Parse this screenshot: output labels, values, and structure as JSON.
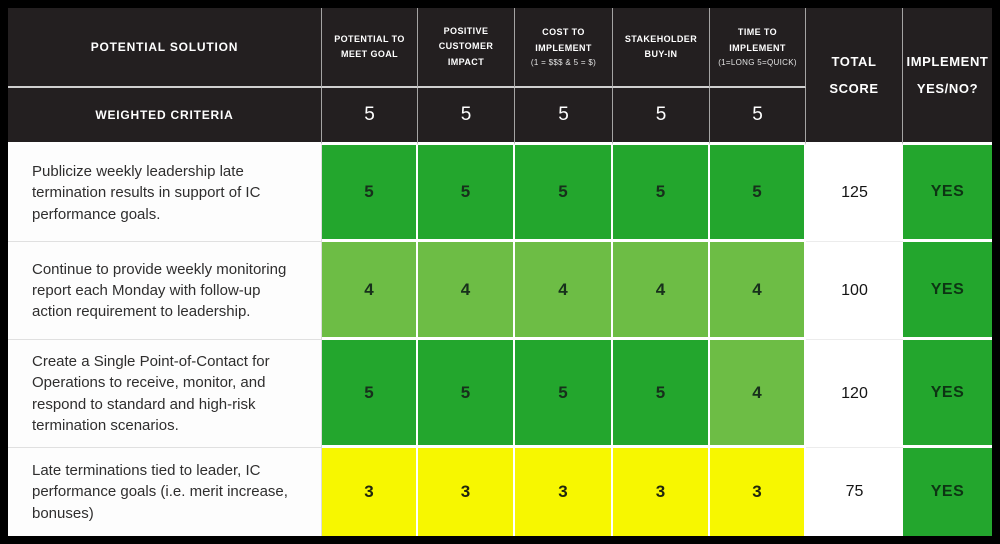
{
  "colors": {
    "frame": "#000000",
    "header_bg": "#231f20",
    "header_text": "#ffffff",
    "score_5_green": "#23a62d",
    "score_4_light_green": "#6dbd45",
    "score_3_yellow": "#f7f700",
    "decision_yes_bg": "#23a62d",
    "gridline_white": "#ffffff"
  },
  "table": {
    "header": {
      "solution_label": "POTENTIAL SOLUTION",
      "weighted_label": "WEIGHTED CRITERIA",
      "criteria": [
        {
          "name": "POTENTIAL TO MEET GOAL",
          "note": "",
          "weight": 5
        },
        {
          "name": "POSITIVE CUSTOMER IMPACT",
          "note": "",
          "weight": 5
        },
        {
          "name": "COST TO IMPLEMENT",
          "note": "(1 = $$$ & 5 = $)",
          "weight": 5
        },
        {
          "name": "STAKEHOLDER BUY-IN",
          "note": "",
          "weight": 5
        },
        {
          "name": "TIME TO IMPLEMENT",
          "note": "(1=LONG 5=QUICK)",
          "weight": 5
        }
      ],
      "total": {
        "line1": "TOTAL",
        "line2": "SCORE"
      },
      "implement": {
        "line1": "IMPLEMENT",
        "line2": "YES/NO?"
      }
    },
    "rows": [
      {
        "solution": "Publicize weekly leadership late termination results in support of IC performance goals.",
        "scores": [
          5,
          5,
          5,
          5,
          5
        ],
        "total": 125,
        "decision": "YES"
      },
      {
        "solution": "Continue to provide weekly monitoring report each Monday with follow-up action requirement to leadership.",
        "scores": [
          4,
          4,
          4,
          4,
          4
        ],
        "total": 100,
        "decision": "YES"
      },
      {
        "solution": "Create a Single Point-of-Contact for Operations to receive, monitor, and respond to standard and high-risk termination scenarios.",
        "scores": [
          5,
          5,
          5,
          5,
          4
        ],
        "total": 120,
        "decision": "YES"
      },
      {
        "solution": "Late terminations tied to leader, IC performance goals (i.e. merit increase, bonuses)",
        "scores": [
          3,
          3,
          3,
          3,
          3
        ],
        "total": 75,
        "decision": "YES"
      }
    ]
  },
  "chart_data": {
    "type": "table",
    "title": "Weighted decision matrix",
    "columns": [
      "POTENTIAL SOLUTION",
      "POTENTIAL TO MEET GOAL",
      "POSITIVE CUSTOMER IMPACT",
      "COST TO IMPLEMENT (1 = $$$ & 5 = $)",
      "STAKEHOLDER BUY-IN",
      "TIME TO IMPLEMENT (1=LONG 5=QUICK)",
      "TOTAL SCORE",
      "IMPLEMENT YES/NO?"
    ],
    "weights_row": [
      "WEIGHTED CRITERIA",
      5,
      5,
      5,
      5,
      5,
      null,
      null
    ],
    "rows": [
      [
        "Publicize weekly leadership late termination results in support of IC performance goals.",
        5,
        5,
        5,
        5,
        5,
        125,
        "YES"
      ],
      [
        "Continue to provide weekly monitoring report each Monday with follow-up action requirement to leadership.",
        4,
        4,
        4,
        4,
        4,
        100,
        "YES"
      ],
      [
        "Create a Single Point-of-Contact for Operations to receive, monitor, and respond to standard and high-risk termination scenarios.",
        5,
        5,
        5,
        5,
        4,
        120,
        "YES"
      ],
      [
        "Late terminations tied to leader, IC performance goals (i.e. merit increase, bonuses)",
        3,
        3,
        3,
        3,
        3,
        75,
        "YES"
      ]
    ],
    "legend": {
      "5": "dark green",
      "4": "light green",
      "3": "yellow"
    }
  }
}
